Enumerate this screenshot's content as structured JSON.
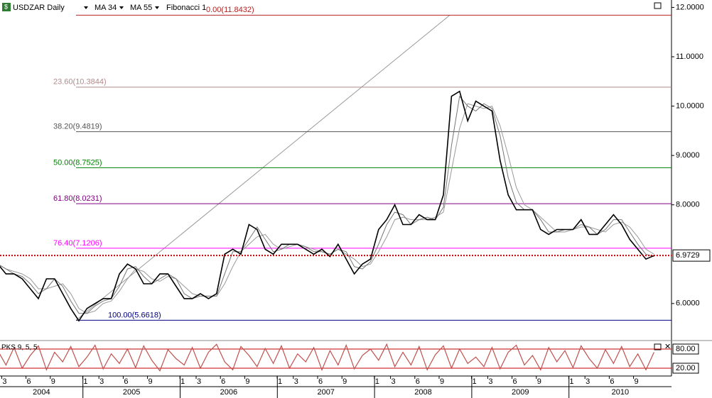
{
  "chart_data": {
    "type": "line",
    "title": "USDZAR Daily",
    "x": [
      "2004-02",
      "2004-03",
      "2004-04",
      "2004-05",
      "2004-06",
      "2004-07",
      "2004-08",
      "2004-09",
      "2004-10",
      "2004-11",
      "2004-12",
      "2005-01",
      "2005-02",
      "2005-03",
      "2005-04",
      "2005-05",
      "2005-06",
      "2005-07",
      "2005-08",
      "2005-09",
      "2005-10",
      "2005-11",
      "2005-12",
      "2006-01",
      "2006-02",
      "2006-03",
      "2006-04",
      "2006-05",
      "2006-06",
      "2006-07",
      "2006-08",
      "2006-09",
      "2006-10",
      "2006-11",
      "2006-12",
      "2007-01",
      "2007-02",
      "2007-03",
      "2007-04",
      "2007-05",
      "2007-06",
      "2007-07",
      "2007-08",
      "2007-09",
      "2007-10",
      "2007-11",
      "2007-12",
      "2008-01",
      "2008-02",
      "2008-03",
      "2008-04",
      "2008-05",
      "2008-06",
      "2008-07",
      "2008-08",
      "2008-09",
      "2008-10",
      "2008-11",
      "2008-12",
      "2009-01",
      "2009-02",
      "2009-03",
      "2009-04",
      "2009-05",
      "2009-06",
      "2009-07",
      "2009-08",
      "2009-09",
      "2009-10",
      "2009-11",
      "2009-12",
      "2010-01",
      "2010-02",
      "2010-03",
      "2010-04",
      "2010-05",
      "2010-06",
      "2010-07",
      "2010-08",
      "2010-09",
      "2010-10",
      "2010-11"
    ],
    "series": [
      {
        "color": "#000000",
        "values": [
          6.8,
          6.6,
          6.6,
          6.5,
          6.3,
          6.1,
          6.5,
          6.5,
          6.2,
          5.9,
          5.65,
          5.9,
          6.0,
          6.1,
          6.1,
          6.6,
          6.8,
          6.7,
          6.4,
          6.4,
          6.6,
          6.6,
          6.35,
          6.1,
          6.1,
          6.2,
          6.1,
          6.2,
          7.0,
          7.1,
          7.0,
          7.6,
          7.5,
          7.1,
          7.0,
          7.2,
          7.2,
          7.2,
          7.1,
          7.0,
          7.1,
          6.95,
          7.2,
          6.9,
          6.6,
          6.8,
          6.9,
          7.5,
          7.7,
          8.0,
          7.6,
          7.6,
          7.8,
          7.7,
          7.7,
          8.2,
          10.2,
          10.3,
          9.7,
          10.1,
          10.0,
          9.9,
          8.9,
          8.2,
          7.9,
          7.9,
          7.9,
          7.5,
          7.4,
          7.5,
          7.5,
          7.5,
          7.7,
          7.4,
          7.4,
          7.6,
          7.8,
          7.6,
          7.3,
          7.1,
          6.9,
          6.97
        ]
      },
      {
        "name": "MA 34",
        "color": "#777777",
        "values": [
          6.8,
          6.7,
          6.6,
          6.55,
          6.4,
          6.2,
          6.3,
          6.5,
          6.35,
          6.05,
          5.8,
          5.8,
          5.95,
          6.05,
          6.1,
          6.35,
          6.7,
          6.75,
          6.55,
          6.4,
          6.5,
          6.6,
          6.5,
          6.2,
          6.1,
          6.15,
          6.15,
          6.15,
          6.6,
          7.05,
          7.05,
          7.3,
          7.55,
          7.3,
          7.05,
          7.1,
          7.2,
          7.2,
          7.15,
          7.05,
          7.05,
          7.0,
          7.1,
          7.05,
          6.75,
          6.7,
          6.85,
          7.2,
          7.6,
          7.85,
          7.8,
          7.6,
          7.7,
          7.75,
          7.7,
          7.95,
          9.2,
          10.2,
          10.0,
          9.9,
          10.05,
          9.95,
          9.4,
          8.55,
          8.05,
          7.9,
          7.9,
          7.7,
          7.45,
          7.45,
          7.5,
          7.5,
          7.6,
          7.55,
          7.4,
          7.5,
          7.7,
          7.7,
          7.45,
          7.2,
          7.0,
          6.95
        ]
      },
      {
        "name": "MA 55",
        "color": "#9a9a9a",
        "values": [
          6.8,
          6.7,
          6.65,
          6.6,
          6.5,
          6.3,
          6.3,
          6.35,
          6.4,
          6.2,
          5.9,
          5.8,
          5.85,
          6.0,
          6.05,
          6.25,
          6.5,
          6.7,
          6.65,
          6.5,
          6.45,
          6.55,
          6.5,
          6.35,
          6.2,
          6.15,
          6.15,
          6.15,
          6.4,
          6.75,
          7.05,
          7.2,
          7.35,
          7.4,
          7.2,
          7.1,
          7.15,
          7.2,
          7.15,
          7.1,
          7.05,
          7.0,
          7.1,
          7.0,
          6.9,
          6.75,
          6.8,
          7.05,
          7.35,
          7.7,
          7.75,
          7.7,
          7.7,
          7.7,
          7.75,
          7.85,
          8.7,
          9.55,
          10.05,
          10.0,
          9.95,
          10.0,
          9.6,
          9.0,
          8.35,
          8.0,
          7.9,
          7.75,
          7.6,
          7.45,
          7.45,
          7.5,
          7.55,
          7.55,
          7.5,
          7.45,
          7.6,
          7.65,
          7.55,
          7.35,
          7.1,
          7.0
        ]
      }
    ],
    "ylim": [
      5.25,
      12.15
    ],
    "yticks": [
      {
        "value": 6,
        "label": "6.0000"
      },
      {
        "value": 8,
        "label": "8.0000"
      },
      {
        "value": 9,
        "label": "9.0000"
      },
      {
        "value": 10,
        "label": "10.0000"
      },
      {
        "value": 11,
        "label": "11.0000"
      },
      {
        "value": 12,
        "label": "12.0000"
      }
    ],
    "last_price": {
      "value": 6.9729,
      "color": "#cc0000"
    },
    "fibonacci": {
      "name": "Fibonacci 1",
      "levels": [
        {
          "value": 11.8432,
          "label": "0.00(11.8432)",
          "color": "#b22222"
        },
        {
          "value": 10.3844,
          "label": "23.60(10.3844)",
          "color": "#b08a8a"
        },
        {
          "value": 9.4819,
          "label": "38.20(9.4819)",
          "color": "#555555"
        },
        {
          "value": 8.7525,
          "label": "50.00(8.7525)",
          "color": "#008000"
        },
        {
          "value": 8.0231,
          "label": "61.80(8.0231)",
          "color": "#800080"
        },
        {
          "value": 7.1206,
          "label": "76.40(7.1206)",
          "color": "#ff00ff"
        },
        {
          "value": 5.6618,
          "label": "100.00(5.6618)",
          "color": "#000080"
        }
      ]
    },
    "xticks": [
      {
        "value": "2004-03",
        "label": "3"
      },
      {
        "value": "2004-06",
        "label": "6"
      },
      {
        "value": "2004-09",
        "label": "9"
      },
      {
        "value": "2005-01",
        "label": "1"
      },
      {
        "value": "2005-03",
        "label": "3"
      },
      {
        "value": "2005-06",
        "label": "6"
      },
      {
        "value": "2005-09",
        "label": "9"
      },
      {
        "value": "2006-01",
        "label": "1"
      },
      {
        "value": "2006-03",
        "label": "3"
      },
      {
        "value": "2006-06",
        "label": "6"
      },
      {
        "value": "2006-09",
        "label": "9"
      },
      {
        "value": "2007-01",
        "label": "1"
      },
      {
        "value": "2007-03",
        "label": "3"
      },
      {
        "value": "2007-06",
        "label": "6"
      },
      {
        "value": "2007-09",
        "label": "9"
      },
      {
        "value": "2008-01",
        "label": "1"
      },
      {
        "value": "2008-03",
        "label": "3"
      },
      {
        "value": "2008-06",
        "label": "6"
      },
      {
        "value": "2008-09",
        "label": "9"
      },
      {
        "value": "2009-01",
        "label": "1"
      },
      {
        "value": "2009-03",
        "label": "3"
      },
      {
        "value": "2009-06",
        "label": "6"
      },
      {
        "value": "2009-09",
        "label": "9"
      },
      {
        "value": "2010-01",
        "label": "1"
      },
      {
        "value": "2010-03",
        "label": "3"
      },
      {
        "value": "2010-06",
        "label": "6"
      },
      {
        "value": "2010-09",
        "label": "9"
      }
    ],
    "years": [
      "2004",
      "2005",
      "2006",
      "2007",
      "2008",
      "2009",
      "2010"
    ],
    "oscillator": {
      "name": "PKS 9, 5, 5",
      "color": "#c0504d",
      "ylim": [
        0,
        100
      ],
      "levels": [
        {
          "value": 80,
          "label": "80.00"
        },
        {
          "value": 20,
          "label": "20.00"
        }
      ],
      "values": [
        75,
        30,
        85,
        20,
        60,
        90,
        15,
        70,
        40,
        88,
        25,
        55,
        92,
        18,
        65,
        35,
        80,
        22,
        90,
        45,
        12,
        78,
        50,
        30,
        85,
        20,
        70,
        95,
        40,
        15,
        88,
        60,
        25,
        82,
        35,
        90,
        20,
        65,
        40,
        85,
        15,
        75,
        30,
        92,
        18,
        60,
        80,
        45,
        95,
        25,
        70,
        30,
        88,
        15,
        62,
        90,
        20,
        80,
        35,
        55,
        25,
        85,
        18,
        70,
        92,
        30,
        60,
        15,
        85,
        40,
        75,
        22,
        90,
        50,
        20,
        78,
        35,
        88,
        25,
        65,
        15,
        70
      ]
    }
  }
}
